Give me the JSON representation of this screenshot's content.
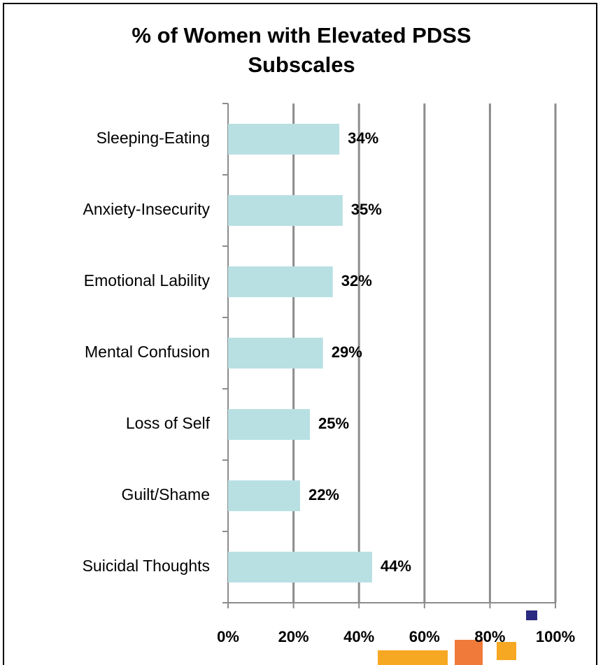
{
  "chart_data": {
    "type": "bar",
    "orientation": "horizontal",
    "title": "% of Women with Elevated PDSS Subscales",
    "categories": [
      "Sleeping-Eating",
      "Anxiety-Insecurity",
      "Emotional Lability",
      "Mental Confusion",
      "Loss of Self",
      "Guilt/Shame",
      "Suicidal Thoughts"
    ],
    "values": [
      34,
      35,
      32,
      29,
      25,
      22,
      44
    ],
    "value_labels": [
      "34%",
      "35%",
      "32%",
      "29%",
      "25%",
      "22%",
      "44%"
    ],
    "color": "#b8e0e3",
    "xlim": [
      0,
      100
    ],
    "xticks": [
      {
        "value": 0,
        "label": "0%"
      },
      {
        "value": 20,
        "label": "20%"
      },
      {
        "value": 40,
        "label": "40%"
      },
      {
        "value": 60,
        "label": "60%"
      },
      {
        "value": 80,
        "label": "80%"
      },
      {
        "value": 100,
        "label": "100%"
      }
    ],
    "grid": true
  }
}
